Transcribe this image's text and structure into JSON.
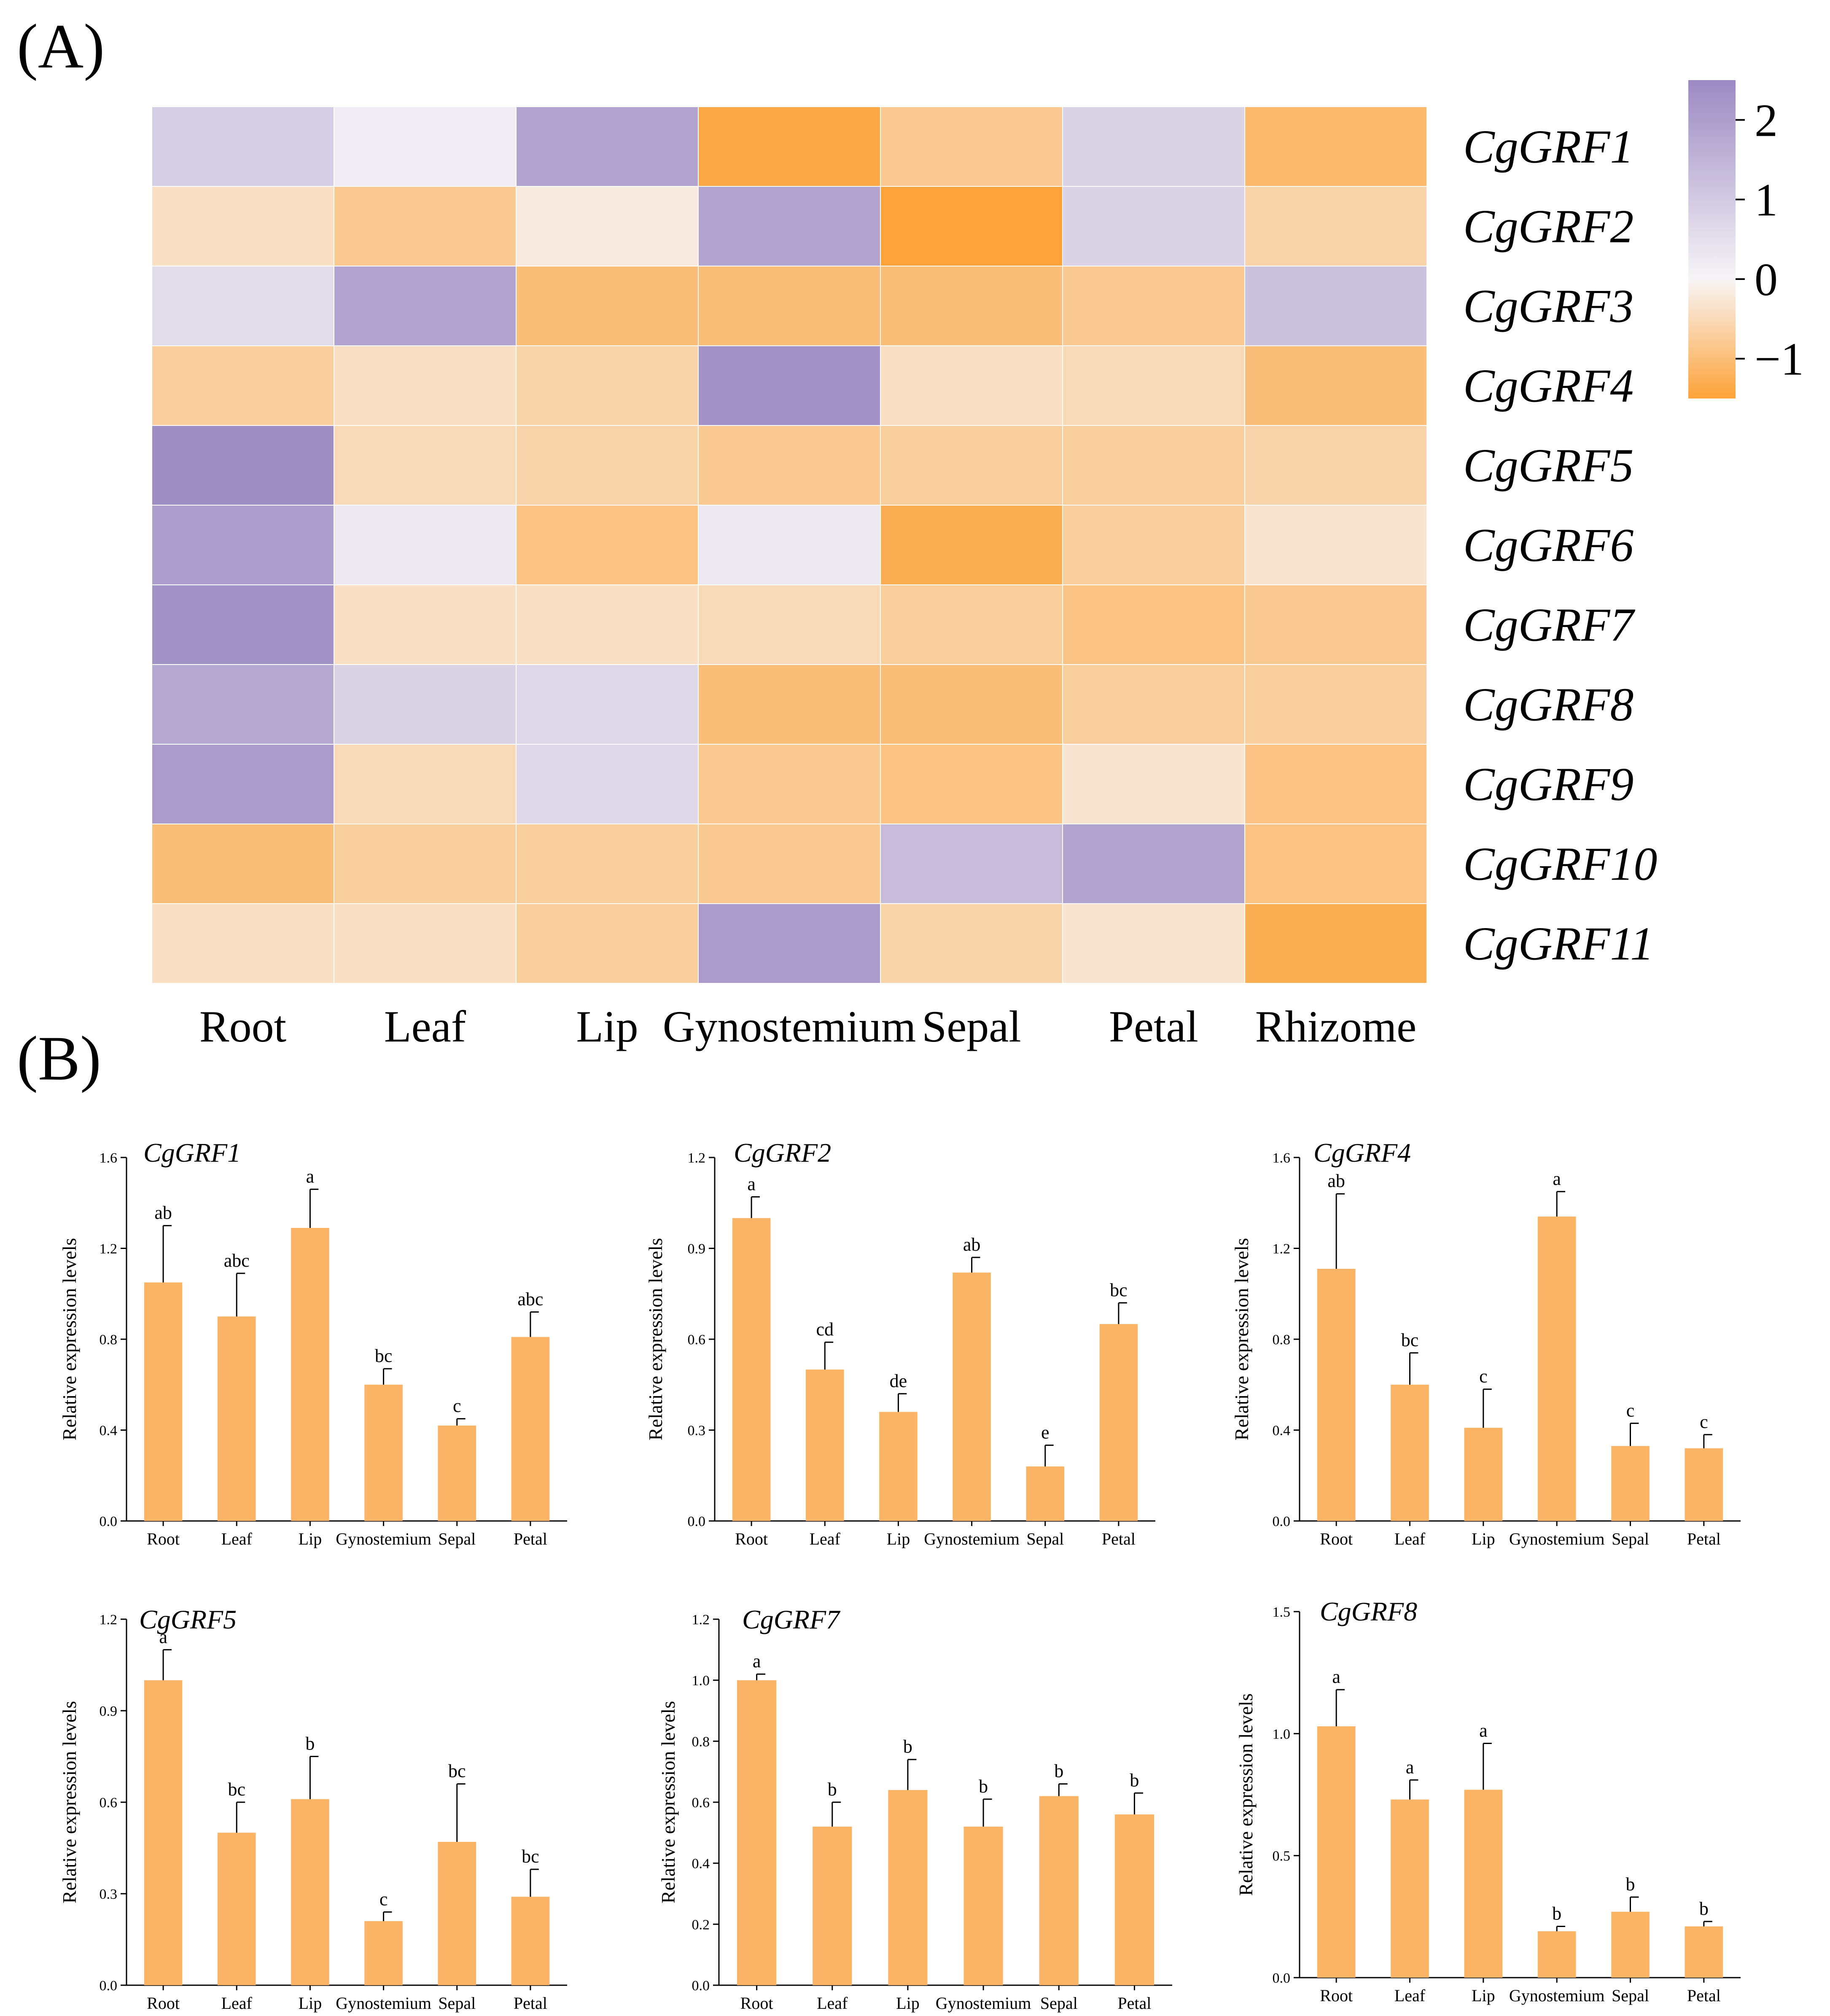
{
  "panel_labels": {
    "a": "(A)",
    "b": "(B)"
  },
  "colors": {
    "bar": "#fbb465",
    "low": "#fda339",
    "mid": "#f7f5f7",
    "high": "#9b8ac2",
    "grid": "#ffffff"
  },
  "chart_data": [
    {
      "type": "heatmap",
      "title": "",
      "columns": [
        "Root",
        "Leaf",
        "Lip",
        "Gynostemium",
        "Sepal",
        "Petal",
        "Rhizome"
      ],
      "rows": [
        "CgGRF1",
        "CgGRF2",
        "CgGRF3",
        "CgGRF4",
        "CgGRF5",
        "CgGRF6",
        "CgGRF7",
        "CgGRF8",
        "CgGRF9",
        "CgGRF10",
        "CgGRF11"
      ],
      "values": [
        [
          0.9,
          0.2,
          1.9,
          -1.4,
          -0.8,
          0.8,
          -1.1
        ],
        [
          -0.4,
          -0.8,
          -0.2,
          1.9,
          -1.5,
          0.8,
          -0.6
        ],
        [
          0.6,
          1.9,
          -1.0,
          -1.0,
          -1.0,
          -0.8,
          1.2
        ],
        [
          -0.7,
          -0.4,
          -0.6,
          2.3,
          -0.4,
          -0.5,
          -1.0
        ],
        [
          2.4,
          -0.5,
          -0.6,
          -0.8,
          -0.7,
          -0.7,
          -0.6
        ],
        [
          2.0,
          0.3,
          -0.9,
          0.3,
          -1.3,
          -0.7,
          -0.3
        ],
        [
          2.3,
          -0.4,
          -0.4,
          -0.5,
          -0.7,
          -0.9,
          -0.8
        ],
        [
          1.8,
          0.8,
          0.7,
          -1.0,
          -1.0,
          -0.7,
          -0.7
        ],
        [
          2.1,
          -0.5,
          0.7,
          -0.8,
          -0.9,
          -0.3,
          -0.9
        ],
        [
          -1.0,
          -0.7,
          -0.7,
          -0.8,
          1.3,
          1.9,
          -0.9
        ],
        [
          -0.4,
          -0.4,
          -0.7,
          2.1,
          -0.6,
          -0.3,
          -1.3
        ]
      ],
      "colorbar": {
        "range": [
          -1.5,
          2.5
        ],
        "ticks": [
          2,
          1,
          0,
          -1
        ],
        "tick_labels": [
          "2",
          "1",
          "0",
          "−1"
        ]
      }
    },
    {
      "type": "bar",
      "title": "CgGRF1",
      "ylabel": "Relative expression levels",
      "categories": [
        "Root",
        "Leaf",
        "Lip",
        "Gynostemium",
        "Sepal",
        "Petal"
      ],
      "values": [
        1.05,
        0.9,
        1.29,
        0.6,
        0.42,
        0.81
      ],
      "errors": [
        0.25,
        0.19,
        0.17,
        0.07,
        0.03,
        0.11
      ],
      "letters": [
        "ab",
        "abc",
        "a",
        "bc",
        "c",
        "abc"
      ],
      "ylim": [
        0,
        1.6
      ],
      "yticks": [
        "0.0",
        "0.4",
        "0.8",
        "1.2",
        "1.6"
      ]
    },
    {
      "type": "bar",
      "title": "CgGRF2",
      "ylabel": "Relative expression levels",
      "categories": [
        "Root",
        "Leaf",
        "Lip",
        "Gynostemium",
        "Sepal",
        "Petal"
      ],
      "values": [
        1.0,
        0.5,
        0.36,
        0.82,
        0.18,
        0.65
      ],
      "errors": [
        0.07,
        0.09,
        0.06,
        0.05,
        0.07,
        0.07
      ],
      "letters": [
        "a",
        "cd",
        "de",
        "ab",
        "e",
        "bc"
      ],
      "ylim": [
        0,
        1.2
      ],
      "yticks": [
        "0.0",
        "0.3",
        "0.6",
        "0.9",
        "1.2"
      ]
    },
    {
      "type": "bar",
      "title": "CgGRF4",
      "ylabel": "Relative expression levels",
      "categories": [
        "Root",
        "Leaf",
        "Lip",
        "Gynostemium",
        "Sepal",
        "Petal"
      ],
      "values": [
        1.11,
        0.6,
        0.41,
        1.34,
        0.33,
        0.32
      ],
      "errors": [
        0.33,
        0.14,
        0.17,
        0.11,
        0.1,
        0.06
      ],
      "letters": [
        "ab",
        "bc",
        "c",
        "a",
        "c",
        "c"
      ],
      "ylim": [
        0,
        1.6
      ],
      "yticks": [
        "0.0",
        "0.4",
        "0.8",
        "1.2",
        "1.6"
      ]
    },
    {
      "type": "bar",
      "title": "CgGRF5",
      "ylabel": "Relative expression levels",
      "categories": [
        "Root",
        "Leaf",
        "Lip",
        "Gynostemium",
        "Sepal",
        "Petal"
      ],
      "values": [
        1.0,
        0.5,
        0.61,
        0.21,
        0.47,
        0.29
      ],
      "errors": [
        0.1,
        0.1,
        0.14,
        0.03,
        0.19,
        0.09
      ],
      "letters": [
        "a",
        "bc",
        "b",
        "c",
        "bc",
        "bc"
      ],
      "ylim": [
        0,
        1.2
      ],
      "yticks": [
        "0.0",
        "0.3",
        "0.6",
        "0.9",
        "1.2"
      ]
    },
    {
      "type": "bar",
      "title": "CgGRF7",
      "ylabel": "Relative expression levels",
      "categories": [
        "Root",
        "Leaf",
        "Lip",
        "Gynostemium",
        "Sepal",
        "Petal"
      ],
      "values": [
        1.0,
        0.52,
        0.64,
        0.52,
        0.62,
        0.56
      ],
      "errors": [
        0.02,
        0.08,
        0.1,
        0.09,
        0.04,
        0.07
      ],
      "letters": [
        "a",
        "b",
        "b",
        "b",
        "b",
        "b"
      ],
      "ylim": [
        0,
        1.2
      ],
      "yticks": [
        "0.0",
        "0.2",
        "0.4",
        "0.6",
        "0.8",
        "1.0",
        "1.2"
      ]
    },
    {
      "type": "bar",
      "title": "CgGRF8",
      "ylabel": "Relative expression levels",
      "categories": [
        "Root",
        "Leaf",
        "Lip",
        "Gynostemium",
        "Sepal",
        "Petal"
      ],
      "values": [
        1.03,
        0.73,
        0.77,
        0.19,
        0.27,
        0.21
      ],
      "errors": [
        0.15,
        0.08,
        0.19,
        0.02,
        0.06,
        0.02
      ],
      "letters": [
        "a",
        "a",
        "a",
        "b",
        "b",
        "b"
      ],
      "ylim": [
        0,
        1.5
      ],
      "yticks": [
        "0.0",
        "0.5",
        "1.0",
        "1.5"
      ]
    }
  ]
}
